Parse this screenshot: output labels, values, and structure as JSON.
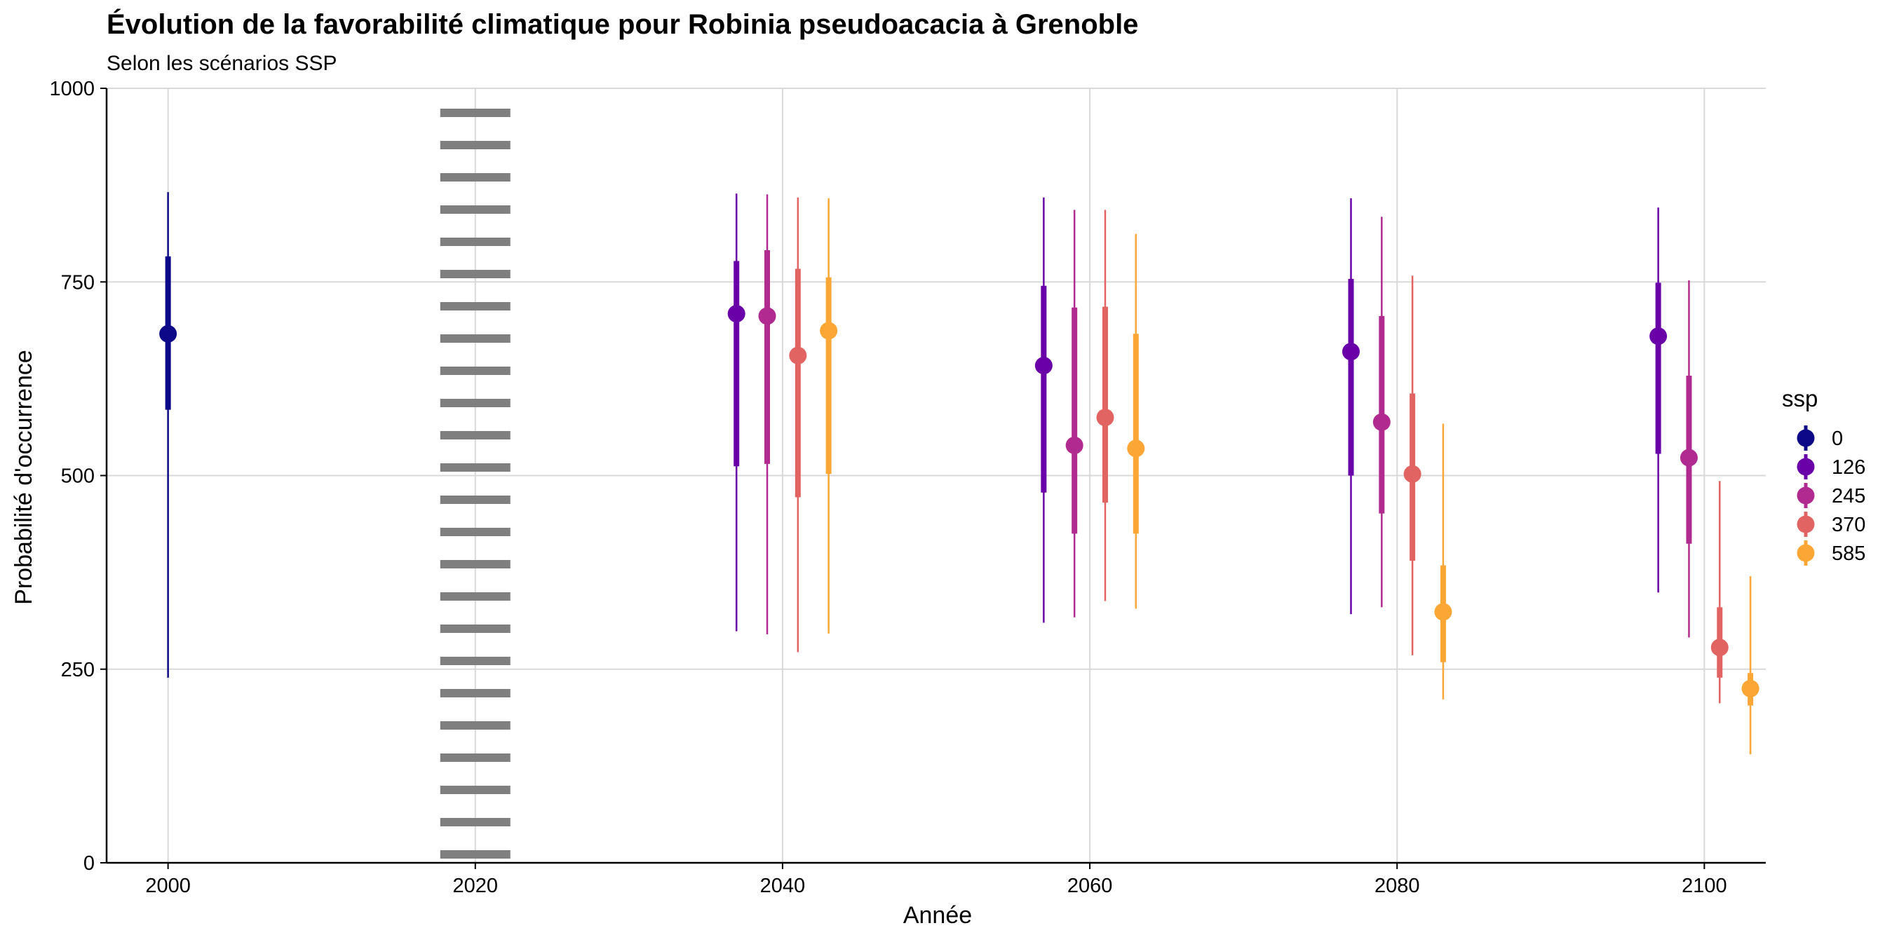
{
  "chart_data": {
    "type": "pointrange",
    "title": "Évolution de la favorabilité climatique pour Robinia pseudoacacia à Grenoble",
    "subtitle": "Selon les scénarios SSP",
    "xlabel": "Année",
    "ylabel": "Probabilité d'occurrence",
    "xlim": [
      1996,
      2104
    ],
    "ylim": [
      0,
      1000
    ],
    "x_ticks": [
      "2000",
      "2020",
      "2040",
      "2060",
      "2080",
      "2100"
    ],
    "y_ticks": [
      "0",
      "250",
      "500",
      "750",
      "1000"
    ],
    "grid": true,
    "reference_line": {
      "x": 2020,
      "style": "dotted",
      "color": "#7f7f7f"
    },
    "legend": {
      "title": "ssp",
      "placement": "right",
      "entries": [
        {
          "label": "0",
          "color": "#0d0887"
        },
        {
          "label": "126",
          "color": "#6a00a8"
        },
        {
          "label": "245",
          "color": "#b12a90"
        },
        {
          "label": "370",
          "color": "#e16462"
        },
        {
          "label": "585",
          "color": "#fca636"
        }
      ]
    },
    "series": [
      {
        "ssp": "0",
        "color": "#0d0887",
        "points": [
          {
            "year": 2000,
            "median": 683,
            "q_low": 585,
            "q_high": 783,
            "min": 239,
            "max": 866
          }
        ]
      },
      {
        "ssp": "126",
        "color": "#6a00a8",
        "points": [
          {
            "year": 2040,
            "median": 709,
            "q_low": 512,
            "q_high": 777,
            "min": 299,
            "max": 864
          },
          {
            "year": 2060,
            "median": 642,
            "q_low": 478,
            "q_high": 745,
            "min": 310,
            "max": 859
          },
          {
            "year": 2080,
            "median": 660,
            "q_low": 500,
            "q_high": 754,
            "min": 321,
            "max": 858
          },
          {
            "year": 2100,
            "median": 680,
            "q_low": 528,
            "q_high": 749,
            "min": 349,
            "max": 846
          }
        ]
      },
      {
        "ssp": "245",
        "color": "#b12a90",
        "points": [
          {
            "year": 2040,
            "median": 706,
            "q_low": 515,
            "q_high": 791,
            "min": 295,
            "max": 863
          },
          {
            "year": 2060,
            "median": 539,
            "q_low": 425,
            "q_high": 717,
            "min": 317,
            "max": 843
          },
          {
            "year": 2080,
            "median": 569,
            "q_low": 451,
            "q_high": 706,
            "min": 330,
            "max": 834
          },
          {
            "year": 2100,
            "median": 523,
            "q_low": 412,
            "q_high": 629,
            "min": 291,
            "max": 752
          }
        ]
      },
      {
        "ssp": "370",
        "color": "#e16462",
        "points": [
          {
            "year": 2040,
            "median": 655,
            "q_low": 472,
            "q_high": 767,
            "min": 272,
            "max": 859
          },
          {
            "year": 2060,
            "median": 575,
            "q_low": 465,
            "q_high": 718,
            "min": 338,
            "max": 843
          },
          {
            "year": 2080,
            "median": 502,
            "q_low": 390,
            "q_high": 606,
            "min": 268,
            "max": 758
          },
          {
            "year": 2100,
            "median": 278,
            "q_low": 239,
            "q_high": 330,
            "min": 206,
            "max": 493
          }
        ]
      },
      {
        "ssp": "585",
        "color": "#fca636",
        "points": [
          {
            "year": 2040,
            "median": 687,
            "q_low": 502,
            "q_high": 756,
            "min": 296,
            "max": 858
          },
          {
            "year": 2060,
            "median": 535,
            "q_low": 425,
            "q_high": 683,
            "min": 328,
            "max": 812
          },
          {
            "year": 2080,
            "median": 324,
            "q_low": 259,
            "q_high": 384,
            "min": 211,
            "max": 567
          },
          {
            "year": 2100,
            "median": 225,
            "q_low": 203,
            "q_high": 245,
            "min": 140,
            "max": 370
          }
        ]
      }
    ]
  }
}
